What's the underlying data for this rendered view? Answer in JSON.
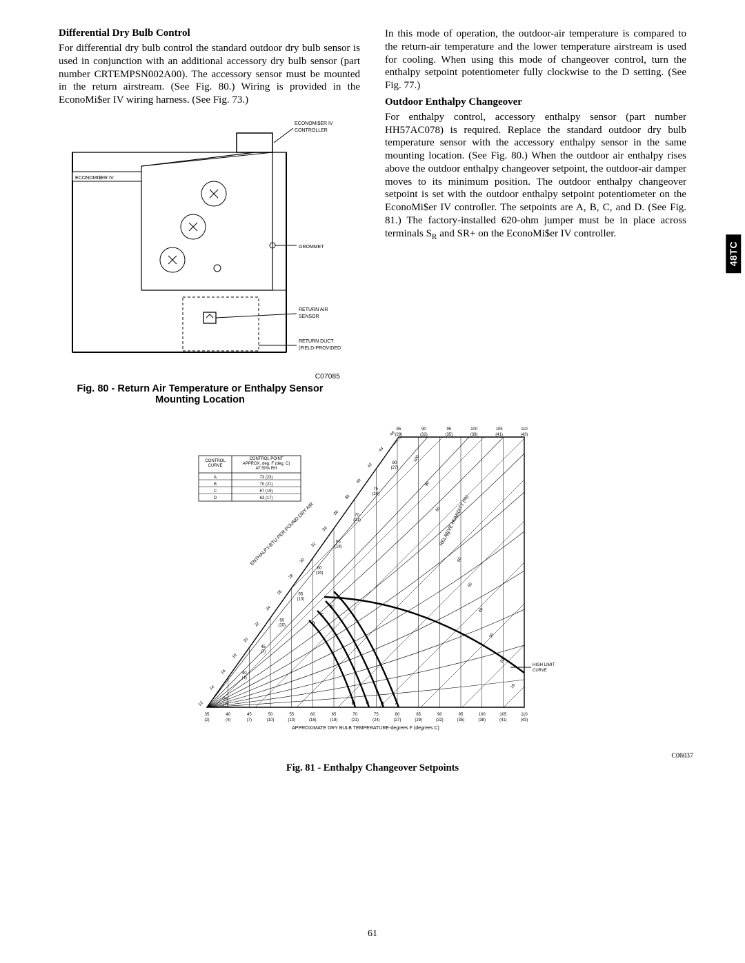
{
  "tab": "48TC",
  "pageNumber": "61",
  "left": {
    "heading1": "Differential Dry Bulb Control",
    "para1": "For differential dry bulb control the standard outdoor dry bulb sensor is used in conjunction with an additional accessory dry bulb sensor (part number CRTEMPSN002A00). The accessory sensor must be mounted in the return airstream. (See Fig. 80.) Wiring is provided in the EconoMi$er IV wiring harness. (See Fig. 73.)"
  },
  "right": {
    "para1": "In this mode of operation, the outdoor-air temperature is compared to the return-air temperature and the lower temperature airstream is used for cooling. When using this mode of changeover control, turn the enthalpy setpoint potentiometer fully clockwise to the D setting. (See Fig. 77.)",
    "heading2": "Outdoor Enthalpy Changeover",
    "para2_pre": "For enthalpy control, accessory enthalpy sensor (part number HH57AC078) is required. Replace the standard outdoor dry bulb temperature sensor with the accessory enthalpy sensor in the same mounting location. (See Fig. 80.) When the outdoor air enthalpy rises above the outdoor enthalpy changeover setpoint, the outdoor-air damper moves to its minimum position. The outdoor enthalpy changeover setpoint is set with the outdoor enthalpy setpoint potentiometer on the EconoMi$er IV controller. The setpoints are A, B, C, and D. (See Fig. 81.) The factory-installed 620-ohm jumper must be in place across terminals S",
    "para2_sub": "R",
    "para2_post": " and SR+ on the EconoMi$er IV controller."
  },
  "fig80": {
    "labels": {
      "controller": "ECONOMI$ER IV\nCONTROLLER",
      "economiser": "ECONOMI$ER IV",
      "grommet": "GROMMET",
      "returnAirSensor": "RETURN AIR\nSENSOR",
      "returnDuct": "RETURN DUCT\n(FIELD-PROVIDED)"
    },
    "code": "C07085",
    "caption": "Fig. 80 - Return Air Temperature or Enthalpy Sensor Mounting Location"
  },
  "fig81": {
    "table": {
      "h1": "CONTROL\nCURVE",
      "h2": "CONTROL POINT\nAPPROX. deg. F (deg. C)\nAT 50% RH",
      "rows": [
        [
          "A",
          "73 (23)"
        ],
        [
          "B",
          "70 (21)"
        ],
        [
          "C",
          "67 (19)"
        ],
        [
          "D",
          "63 (17)"
        ]
      ]
    },
    "axis": {
      "enthalpyLabel": "ENTHALPY-BTU PER POUND DRY AIR",
      "rhLabel": "RELATIVE HUMIDITY (%)",
      "xLabel": "APPROXIMATE DRY BULB TEMPERATURE-degrees F (degrees C)",
      "highLimit": "HIGH LIMIT\nCURVE",
      "topF": [
        "85",
        "90",
        "95",
        "100",
        "105",
        "110"
      ],
      "topC": [
        "(29)",
        "(32)",
        "(35)",
        "(38)",
        "(41)",
        "(43)"
      ],
      "bottomF": [
        "35",
        "40",
        "45",
        "50",
        "55",
        "60",
        "65",
        "70",
        "75",
        "80",
        "85",
        "90",
        "95",
        "100",
        "105",
        "110"
      ],
      "bottomC": [
        "(2)",
        "(4)",
        "(7)",
        "(10)",
        "(13)",
        "(16)",
        "(18)",
        "(21)",
        "(24)",
        "(27)",
        "(29)",
        "(32)",
        "(35)",
        "(38)",
        "(41)",
        "(43)"
      ],
      "enthalpyTicks": [
        "12",
        "14",
        "16",
        "18",
        "20",
        "22",
        "24",
        "26",
        "28",
        "30",
        "32",
        "34",
        "36",
        "38",
        "40",
        "42",
        "44",
        "46"
      ],
      "midTempF": [
        "35",
        "40",
        "45",
        "50",
        "55",
        "60",
        "65",
        "70",
        "75",
        "80"
      ],
      "midTempC": [
        "(2)",
        "(4)",
        "(7)",
        "(10)",
        "(13)",
        "(16)",
        "(18)",
        "(21)",
        "(24)",
        "(27)"
      ],
      "rhTicks": [
        "100",
        "90",
        "80",
        "70",
        "60",
        "50",
        "40",
        "30",
        "20",
        "10"
      ],
      "curveLetters": [
        "D",
        "C",
        "B",
        "A"
      ],
      "baseLetters": [
        "D",
        "C",
        "B",
        "A"
      ]
    },
    "code": "C06037",
    "caption": "Fig. 81 - Enthalpy Changeover Setpoints"
  }
}
